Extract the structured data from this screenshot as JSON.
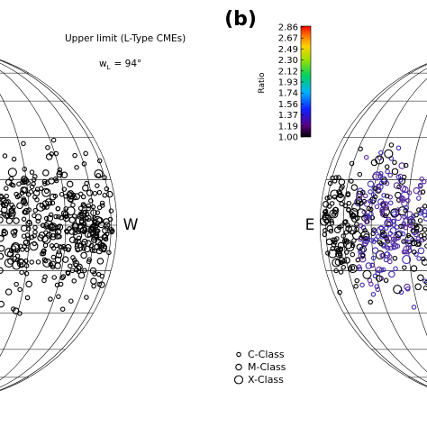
{
  "panel_label": "(b)",
  "title": "Upper limit (L-Type CMEs)",
  "width_label": {
    "symbol": "w",
    "subscript": "L",
    "rest": "= 94°"
  },
  "colorbar": {
    "label": "Ratio",
    "ticks": [
      "2.86",
      "2.67",
      "2.49",
      "2.30",
      "2.12",
      "1.93",
      "1.74",
      "1.56",
      "1.37",
      "1.19",
      "1.00"
    ]
  },
  "limb_labels": {
    "west": "W",
    "east": "E"
  },
  "legend": [
    "C-Class",
    "M-Class",
    "X-Class"
  ]
}
